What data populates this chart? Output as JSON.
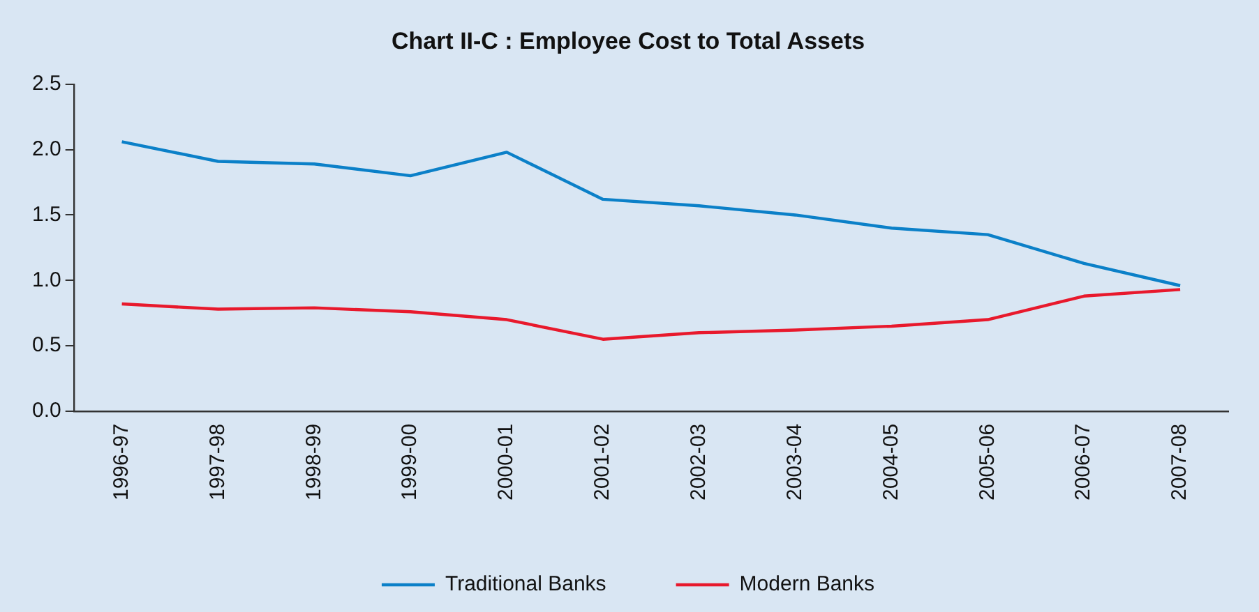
{
  "chart_data": {
    "type": "line",
    "title": "Chart II-C : Employee Cost to Total Assets",
    "categories": [
      "1996-97",
      "1997-98",
      "1998-99",
      "1999-00",
      "2000-01",
      "2001-02",
      "2002-03",
      "2003-04",
      "2004-05",
      "2005-06",
      "2006-07",
      "2007-08"
    ],
    "series": [
      {
        "name": "Traditional Banks",
        "color": "#0b80c8",
        "values": [
          2.06,
          1.91,
          1.89,
          1.8,
          1.98,
          1.62,
          1.57,
          1.5,
          1.4,
          1.35,
          1.13,
          0.96
        ]
      },
      {
        "name": "Modern Banks",
        "color": "#e8192c",
        "values": [
          0.82,
          0.78,
          0.79,
          0.76,
          0.7,
          0.55,
          0.6,
          0.62,
          0.65,
          0.7,
          0.88,
          0.93
        ]
      }
    ],
    "ylim": [
      0,
      2.5
    ],
    "yticks": [
      {
        "value": 0,
        "label": "0.0"
      },
      {
        "value": 0.5,
        "label": "0.5"
      },
      {
        "value": 1,
        "label": "1.0"
      },
      {
        "value": 1.5,
        "label": "1.5"
      },
      {
        "value": 2,
        "label": "2.0"
      },
      {
        "value": 2.5,
        "label": "2.5"
      }
    ],
    "grid": false,
    "legend": "bottom",
    "marker": "none",
    "line_style": "solid"
  }
}
